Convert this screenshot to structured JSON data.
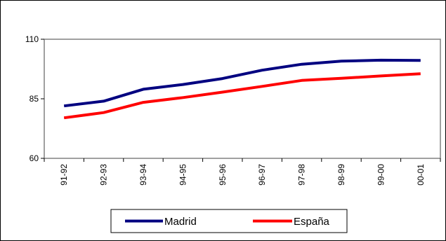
{
  "chart_data": {
    "type": "line",
    "title": "",
    "xlabel": "",
    "ylabel": "",
    "categories": [
      "91-92",
      "92-93",
      "93-94",
      "94-95",
      "95-96",
      "96-97",
      "97-98",
      "98-99",
      "99-00",
      "00-01"
    ],
    "ylim": [
      60,
      110
    ],
    "yticks": [
      "60",
      "85",
      "110"
    ],
    "grid": false,
    "legend_position": "bottom",
    "series": [
      {
        "name": "Madrid",
        "color": "#000080",
        "values": [
          82,
          84,
          89,
          91,
          93.5,
          97,
          99.5,
          100.8,
          101.2,
          101.1
        ]
      },
      {
        "name": "España",
        "color": "#ff0000",
        "values": [
          77,
          79.2,
          83.5,
          85.5,
          87.8,
          90.2,
          92.7,
          93.6,
          94.6,
          95.5
        ]
      }
    ]
  }
}
